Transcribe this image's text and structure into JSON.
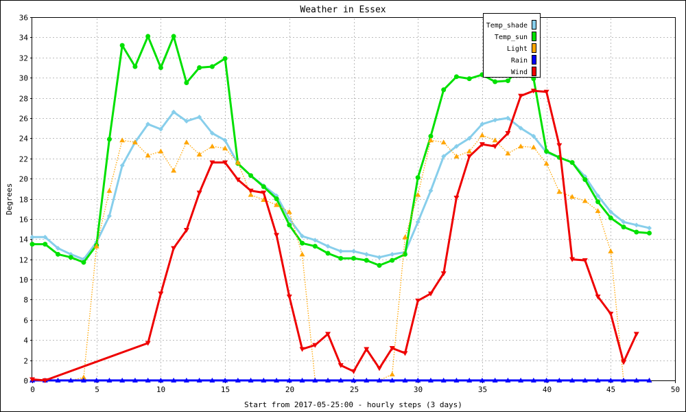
{
  "chart_data": {
    "type": "line",
    "title": "Weather in Essex",
    "xlabel": "Start from 2017-05-25:00 - hourly steps (3 days)",
    "ylabel": "Degrees",
    "xlim": [
      0,
      50
    ],
    "ylim": [
      0,
      36
    ],
    "x_ticks": [
      "0",
      "5",
      "10",
      "15",
      "20",
      "25",
      "30",
      "35",
      "40",
      "45",
      "50"
    ],
    "y_ticks": [
      "0",
      "2",
      "4",
      "6",
      "8",
      "10",
      "12",
      "14",
      "16",
      "18",
      "20",
      "22",
      "24",
      "26",
      "28",
      "30",
      "32",
      "34",
      "36"
    ],
    "grid": true,
    "legend_position": "top-right",
    "series": [
      {
        "name": "Temp_shade",
        "color": "#87CEEB",
        "marker": "diamond",
        "style": "solid",
        "x": [
          0,
          1,
          2,
          3,
          4,
          5,
          6,
          7,
          8,
          9,
          10,
          11,
          12,
          13,
          14,
          15,
          16,
          17,
          18,
          19,
          20,
          21,
          22,
          23,
          24,
          25,
          26,
          27,
          28,
          29,
          30,
          31,
          32,
          33,
          34,
          35,
          36,
          37,
          38,
          39,
          40,
          41,
          42,
          43,
          44,
          45,
          46,
          47,
          48
        ],
        "y": [
          14.2,
          14.2,
          13.1,
          12.5,
          12.0,
          13.7,
          16.3,
          21.3,
          23.6,
          25.4,
          24.9,
          26.6,
          25.7,
          26.1,
          24.5,
          23.8,
          21.5,
          20.3,
          19.3,
          18.3,
          16.0,
          14.3,
          13.9,
          13.3,
          12.8,
          12.8,
          12.5,
          12.2,
          12.5,
          12.7,
          15.7,
          18.8,
          22.2,
          23.2,
          24.0,
          25.4,
          25.8,
          26.0,
          25.0,
          24.2,
          22.6,
          22.1,
          21.6,
          20.2,
          18.3,
          16.7,
          15.7,
          15.4,
          15.1
        ]
      },
      {
        "name": "Temp_sun",
        "color": "#00E000",
        "marker": "circle",
        "style": "solid",
        "x": [
          0,
          1,
          2,
          3,
          4,
          5,
          6,
          7,
          8,
          9,
          10,
          11,
          12,
          13,
          14,
          15,
          16,
          17,
          18,
          19,
          20,
          21,
          22,
          23,
          24,
          25,
          26,
          27,
          28,
          29,
          30,
          31,
          32,
          33,
          34,
          35,
          36,
          37,
          38,
          39,
          40,
          41,
          42,
          43,
          44,
          45,
          46,
          47,
          48
        ],
        "y": [
          13.5,
          13.5,
          12.5,
          12.2,
          11.7,
          13.4,
          23.9,
          33.2,
          31.1,
          34.1,
          31.0,
          34.1,
          29.5,
          31.0,
          31.1,
          31.9,
          21.5,
          20.3,
          19.2,
          18.0,
          15.4,
          13.6,
          13.3,
          12.6,
          12.1,
          12.1,
          11.9,
          11.4,
          11.9,
          12.5,
          20.1,
          24.2,
          28.8,
          30.1,
          29.9,
          30.3,
          29.6,
          29.7,
          31.1,
          29.9,
          22.7,
          22.1,
          21.6,
          19.9,
          17.7,
          16.1,
          15.2,
          14.7,
          14.6
        ]
      },
      {
        "name": "Light",
        "color": "#FFA500",
        "marker": "triangle-up",
        "style": "dotted",
        "x": [
          0,
          1,
          2,
          3,
          4,
          5,
          6,
          7,
          8,
          9,
          10,
          11,
          12,
          13,
          14,
          15,
          16,
          17,
          18,
          19,
          20,
          21,
          22,
          23,
          24,
          25,
          26,
          27,
          28,
          29,
          30,
          31,
          32,
          33,
          34,
          35,
          36,
          37,
          38,
          39,
          40,
          41,
          42,
          43,
          44,
          45,
          46,
          47,
          48
        ],
        "y": [
          0,
          0,
          0,
          0,
          0.3,
          13.3,
          18.8,
          23.8,
          23.6,
          22.3,
          22.7,
          20.8,
          23.6,
          22.4,
          23.2,
          23.0,
          21.6,
          18.4,
          17.9,
          17.4,
          16.7,
          12.5,
          0,
          0,
          0,
          0,
          0,
          0,
          0.6,
          14.2,
          18.4,
          23.8,
          23.6,
          22.2,
          22.7,
          24.3,
          23.8,
          22.5,
          23.2,
          23.1,
          21.5,
          18.7,
          18.2,
          17.8,
          16.8,
          12.8,
          0,
          0,
          0
        ]
      },
      {
        "name": "Rain",
        "color": "#0000FF",
        "marker": "triangle-up",
        "style": "solid",
        "x": [
          0,
          1,
          2,
          3,
          4,
          5,
          6,
          7,
          8,
          9,
          10,
          11,
          12,
          13,
          14,
          15,
          16,
          17,
          18,
          19,
          20,
          21,
          22,
          23,
          24,
          25,
          26,
          27,
          28,
          29,
          30,
          31,
          32,
          33,
          34,
          35,
          36,
          37,
          38,
          39,
          40,
          41,
          42,
          43,
          44,
          45,
          46,
          47,
          48
        ],
        "y": [
          0,
          0,
          0,
          0,
          0,
          0,
          0,
          0,
          0,
          0,
          0,
          0,
          0,
          0,
          0,
          0,
          0,
          0,
          0,
          0,
          0,
          0,
          0,
          0,
          0,
          0,
          0,
          0,
          0,
          0,
          0,
          0,
          0,
          0,
          0,
          0,
          0,
          0,
          0,
          0,
          0,
          0,
          0,
          0,
          0,
          0,
          0,
          0,
          0
        ]
      },
      {
        "name": "Wind",
        "color": "#EE0000",
        "marker": "triangle-down",
        "style": "solid",
        "x": [
          0,
          1,
          9,
          10,
          11,
          12,
          13,
          14,
          15,
          16,
          17,
          18,
          19,
          20,
          21,
          22,
          23,
          24,
          25,
          26,
          27,
          28,
          29,
          30,
          31,
          32,
          33,
          34,
          35,
          36,
          37,
          38,
          39,
          40,
          41,
          42,
          43,
          44,
          45,
          46,
          47
        ],
        "y": [
          0.1,
          0.0,
          3.7,
          8.6,
          13.1,
          14.9,
          18.6,
          21.6,
          21.6,
          19.9,
          18.8,
          18.6,
          14.4,
          8.3,
          3.1,
          3.5,
          4.6,
          1.5,
          0.9,
          3.1,
          1.2,
          3.2,
          2.7,
          7.9,
          8.6,
          10.6,
          18.1,
          22.2,
          23.4,
          23.2,
          24.5,
          28.2,
          28.7,
          28.6,
          23.3,
          12.0,
          11.9,
          8.3,
          6.6,
          1.8,
          4.6
        ]
      }
    ]
  }
}
